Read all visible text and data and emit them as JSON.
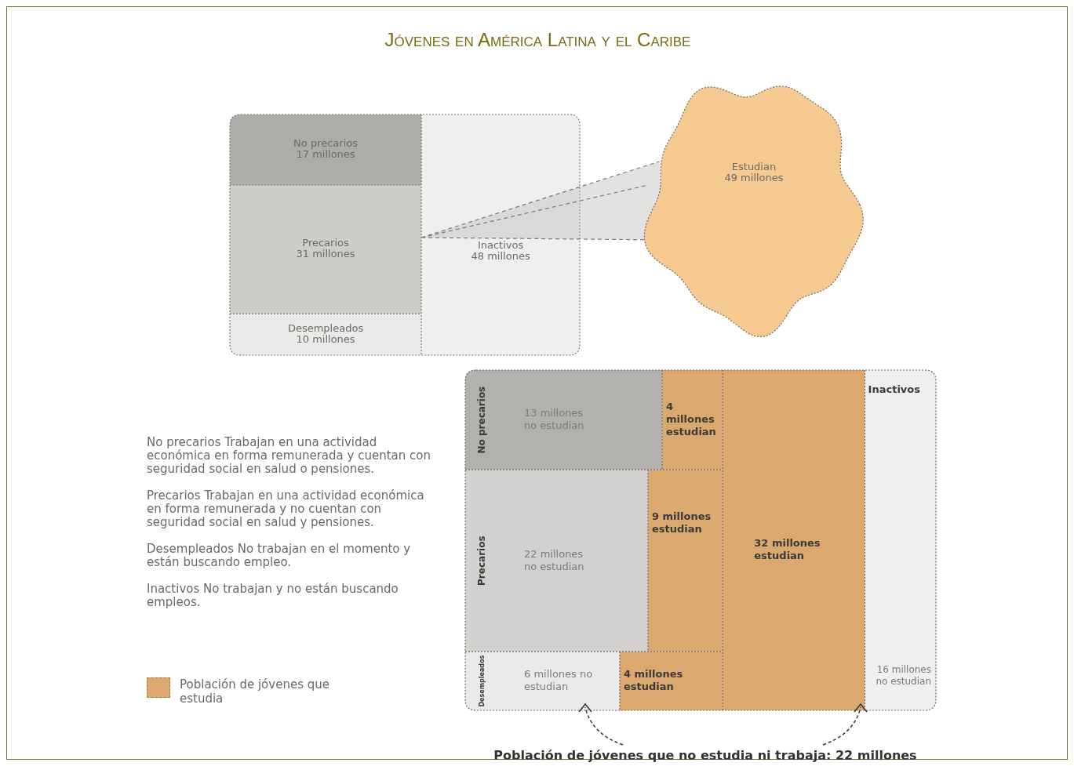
{
  "chart_data": [
    {
      "type": "other",
      "title": "Jóvenes en América Latina y el Caribe",
      "categories": [
        "No precarios",
        "Precarios",
        "Desempleados",
        "Inactivos",
        "Estudian"
      ],
      "values": [
        17,
        31,
        10,
        48,
        49
      ],
      "value_labels": [
        "17 millones",
        "31 millones",
        "10 millones",
        "48 millones",
        "49 millones"
      ],
      "colors": [
        "#aeaca9",
        "#cfcdca",
        "#ebeae8",
        "#f0efed",
        "#f5c98f"
      ]
    },
    {
      "type": "other",
      "xlabel": "Población de jóvenes que no estudia ni trabaja: 22 millones",
      "categories": [
        "No precarios",
        "Precarios",
        "Desempleados",
        "Inactivos"
      ],
      "series": [
        {
          "colors": [
            "#b3b1ae",
            "#d2d1cf",
            "#ebeae9",
            "#efefee"
          ],
          "values": [
            13,
            22,
            6,
            16
          ],
          "value_labels": [
            "13 millones no estudian",
            "22 millones no estudian",
            "6 millones no estudian",
            "16 millones no estudian"
          ]
        },
        {
          "name": "Población de jóvenes que estudia",
          "color": "#dba870",
          "values": [
            4,
            9,
            4,
            32
          ],
          "value_labels": [
            "4 millones estudian",
            "9 millones estudian",
            "4 millones estudian",
            "32 millones estudian"
          ]
        }
      ],
      "legend": "left",
      "annotations": [
        "No precarios  Trabajan en una actividad económica en forma remunerada y cuentan con seguridad social en salud o pensiones.",
        "Precarios  Trabajan en una actividad económica en forma remunerada y no cuentan con seguridad social en salud y pensiones.",
        "Desempleados  No trabajan en el momento y están buscando empleo.",
        "Inactivos  No trabajan y no están buscando empleos."
      ]
    }
  ]
}
